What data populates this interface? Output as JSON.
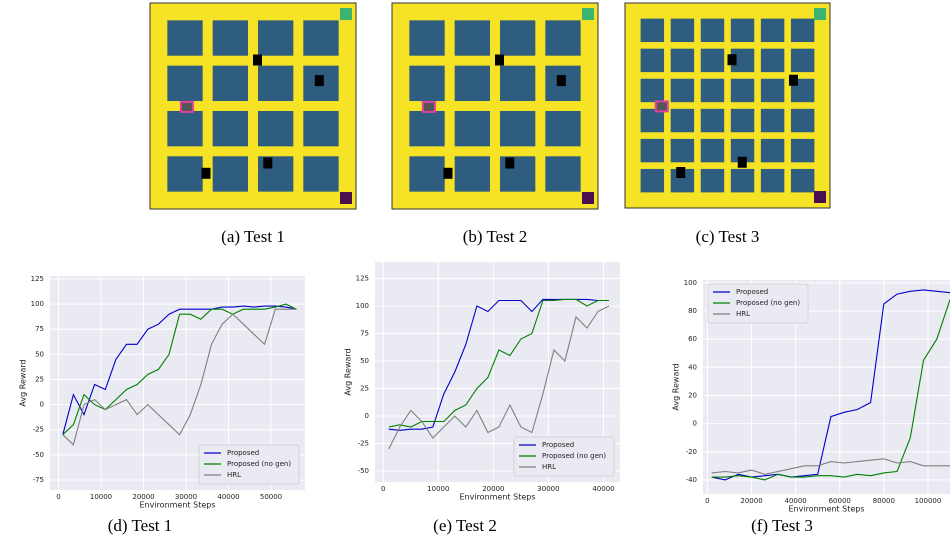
{
  "panels": [
    {
      "caption": "(a) Test 1"
    },
    {
      "caption": "(b) Test 2"
    },
    {
      "caption": "(c) Test 3"
    }
  ],
  "chart_data": [
    {
      "type": "line",
      "caption": "(d) Test 1",
      "xlabel": "Environment Steps",
      "ylabel": "Avg Reward",
      "x": [
        1000,
        3500,
        6000,
        8500,
        11000,
        13500,
        16000,
        18500,
        21000,
        23500,
        26000,
        28500,
        31000,
        33500,
        36000,
        38500,
        41000,
        43500,
        46000,
        48500,
        51000,
        53500,
        56000
      ],
      "series": [
        {
          "name": "Proposed",
          "color": "#0000cc",
          "values": [
            -30,
            10,
            -10,
            20,
            15,
            45,
            60,
            60,
            75,
            80,
            90,
            95,
            95,
            95,
            95,
            97,
            97,
            98,
            97,
            98,
            98,
            97,
            95
          ]
        },
        {
          "name": "Proposed (no gen)",
          "color": "#008000",
          "values": [
            -30,
            -20,
            10,
            0,
            -5,
            5,
            15,
            20,
            30,
            35,
            50,
            90,
            90,
            85,
            95,
            95,
            90,
            95,
            95,
            95,
            97,
            100,
            95
          ]
        },
        {
          "name": "HRL",
          "color": "#808080",
          "values": [
            -30,
            -40,
            0,
            5,
            -5,
            0,
            5,
            -10,
            0,
            -10,
            -20,
            -30,
            -10,
            20,
            60,
            80,
            90,
            80,
            70,
            60,
            95,
            95,
            95
          ]
        }
      ],
      "xlim": [
        -2000,
        58000
      ],
      "xticks": [
        0,
        10000,
        20000,
        30000,
        40000,
        50000
      ],
      "ylim": [
        -85,
        128
      ],
      "yticks": [
        -75,
        -50,
        -25,
        0,
        25,
        50,
        75,
        100,
        125
      ],
      "grid": true,
      "legend": "lower right"
    },
    {
      "type": "line",
      "caption": "(e) Test 2",
      "xlabel": "Environment Steps",
      "ylabel": "Avg Reward",
      "x": [
        1000,
        3000,
        5000,
        7000,
        9000,
        11000,
        13000,
        15000,
        17000,
        19000,
        21000,
        23000,
        25000,
        27000,
        29000,
        31000,
        33000,
        35000,
        37000,
        39000,
        41000
      ],
      "series": [
        {
          "name": "Proposed",
          "color": "#0000cc",
          "values": [
            -12,
            -13,
            -12,
            -12,
            -10,
            20,
            40,
            65,
            100,
            95,
            105,
            105,
            105,
            95,
            106,
            106,
            106,
            106,
            106,
            105,
            105
          ]
        },
        {
          "name": "Proposed (no gen)",
          "color": "#008000",
          "values": [
            -10,
            -8,
            -10,
            -5,
            -5,
            -5,
            5,
            10,
            25,
            35,
            60,
            55,
            70,
            75,
            105,
            105,
            106,
            106,
            100,
            105,
            105
          ]
        },
        {
          "name": "HRL",
          "color": "#808080",
          "values": [
            -30,
            -10,
            5,
            -5,
            -20,
            -10,
            0,
            -10,
            5,
            -15,
            -10,
            10,
            -10,
            -15,
            20,
            60,
            50,
            90,
            80,
            95,
            100
          ]
        }
      ],
      "xlim": [
        -1500,
        43000
      ],
      "xticks": [
        0,
        10000,
        20000,
        30000,
        40000
      ],
      "ylim": [
        -60,
        140
      ],
      "yticks": [
        -50,
        -25,
        0,
        25,
        50,
        75,
        100,
        125
      ],
      "grid": true,
      "legend": "lower right"
    },
    {
      "type": "line",
      "caption": "(f) Test 3",
      "xlabel": "Environment Steps",
      "ylabel": "Avg Reward",
      "x": [
        2000,
        8000,
        14000,
        20000,
        26000,
        32000,
        38000,
        44000,
        50000,
        56000,
        62000,
        68000,
        74000,
        80000,
        86000,
        92000,
        98000,
        104000,
        110000
      ],
      "series": [
        {
          "name": "Proposed",
          "color": "#0000cc",
          "values": [
            -38,
            -40,
            -36,
            -38,
            -37,
            -36,
            -38,
            -37,
            -36,
            5,
            8,
            10,
            15,
            85,
            92,
            94,
            95,
            94,
            93
          ]
        },
        {
          "name": "Proposed (no gen)",
          "color": "#008000",
          "values": [
            -38,
            -38,
            -37,
            -38,
            -40,
            -36,
            -38,
            -38,
            -37,
            -37,
            -38,
            -36,
            -37,
            -35,
            -34,
            -10,
            45,
            60,
            88
          ]
        },
        {
          "name": "HRL",
          "color": "#808080",
          "values": [
            -35,
            -34,
            -35,
            -33,
            -36,
            -34,
            -32,
            -30,
            -30,
            -27,
            -28,
            -27,
            -26,
            -25,
            -28,
            -27,
            -30,
            -30,
            -30
          ]
        }
      ],
      "xlim": [
        -2000,
        110000
      ],
      "xticks": [
        0,
        20000,
        40000,
        60000,
        80000,
        100000
      ],
      "ylim": [
        -50,
        102
      ],
      "yticks": [
        -40,
        -20,
        0,
        20,
        40,
        60,
        80,
        100
      ],
      "grid": true,
      "legend": "upper left"
    }
  ]
}
